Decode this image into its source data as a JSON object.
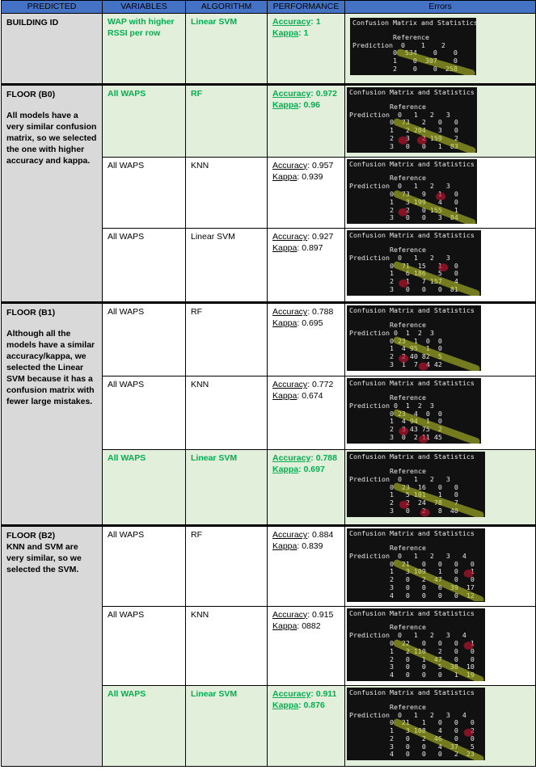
{
  "headers": {
    "predicted": "PREDICTED",
    "variables": "VARIABLES",
    "algorithm": "ALGORITHM",
    "performance": "PERFORMANCE",
    "errors": "Errors"
  },
  "cm_title": "Confusion Matrix and Statistics",
  "cm_reference": "Reference",
  "cm_prediction": "Prediction",
  "acc_label": "Accuracy",
  "kappa_label": "Kappa",
  "colors": {
    "header": "#4472c4",
    "selected_bg": "#e2efda",
    "selected_text": "#00b050",
    "predicted_bg": "#d9d9d9",
    "diagonal_highlight": "#c5d12a",
    "error_highlight": "#c0152f"
  },
  "groups": {
    "building": {
      "title": "BUILDING ID",
      "explanation": "",
      "rows": [
        {
          "variables": "WAP with higher RSSI per row",
          "algorithm": "Linear SVM",
          "accuracy": ": 1",
          "kappa": ": 1",
          "cm": {
            "cols": "  0    1    2",
            "lines": [
              "0  534    0    0",
              "1    0  307    0",
              "2    0    0  258"
            ]
          }
        }
      ]
    },
    "b0": {
      "title": "FLOOR (B0)",
      "explanation": "All models have a very similar confusion matrix, so we selected the one with higher accuracy and kappa.",
      "rows": [
        {
          "variables": "All WAPS",
          "algorithm": "RF",
          "accuracy": ": 0.972",
          "kappa": ": 0.96",
          "cm": {
            "cols": "  0   1   2   3",
            "lines": [
              "0  73   2   0   0",
              "1   2 204   3   0",
              "2   3   2 159   2",
              "3   0   0   1  83"
            ]
          }
        },
        {
          "variables": "All WAPS",
          "algorithm": "KNN",
          "accuracy": ": 0.957",
          "kappa": ": 0.939",
          "cm": {
            "cols": "  0   1   2   3",
            "lines": [
              "0  73   9   1   0",
              "1   3 199   4   0",
              "2   2   0 155   1",
              "3   0   0   3  84"
            ]
          }
        },
        {
          "variables": "All WAPS",
          "algorithm": "Linear SVM",
          "accuracy": ": 0.927",
          "kappa": ": 0.897",
          "cm": {
            "cols": "  0   1   2   3",
            "lines": [
              "0  71  15   1   0",
              "1   6 186   5   0",
              "2   1   7 157   4",
              "3   0   0   0  81"
            ]
          }
        }
      ]
    },
    "b1": {
      "title": "FLOOR (B1)",
      "explanation": "Although all the models have a similar accuracy/kappa, we selected the Linear SVM because it has a confusion matrix with fewer large mistakes.",
      "rows": [
        {
          "variables": "All WAPS",
          "algorithm": "RF",
          "accuracy": ": 0.788",
          "kappa": ": 0.695",
          "cm": {
            "cols": " 0  1  2  3",
            "lines": [
              "0 23  1  0  0",
              "1  4 95  1  0",
              "2  2 40 82  5",
              "3  1  7  4 42"
            ]
          }
        },
        {
          "variables": "All WAPS",
          "algorithm": "KNN",
          "accuracy": ": 0.772",
          "kappa": ": 0.674",
          "cm": {
            "cols": " 0  1  2  3",
            "lines": [
              "0 23  4  0  0",
              "1  4 94  1  0",
              "2  3 43 75  2",
              "3  0  2 11 45"
            ]
          }
        },
        {
          "variables": "All WAPS",
          "algorithm": "Linear SVM",
          "accuracy": ": 0.788",
          "kappa": ": 0.697",
          "cm": {
            "cols": "  0   1   2   3",
            "lines": [
              "0  23  16   0   0",
              "1   5 101   1   0",
              "2   2  24  78   7",
              "3   0   2   8  40"
            ]
          }
        }
      ]
    },
    "b2": {
      "title": "FLOOR (B2)",
      "explanation": "KNN and SVM are very similar, so we selected the SVM.",
      "rows": [
        {
          "variables": "All WAPS",
          "algorithm": "RF",
          "accuracy": ": 0.884",
          "kappa": ": 0.839",
          "cm": {
            "cols": "  0   1   2   3   4",
            "lines": [
              "0  21   0   0   0   0",
              "1   3 109   1   0   1",
              "2   0   2  47   0   0",
              "3   0   0   6  39  17",
              "4   0   0   0   0  12"
            ]
          }
        },
        {
          "variables": "All WAPS",
          "algorithm": "KNN",
          "accuracy": ": 0.915",
          "kappa": ": 0882",
          "cm": {
            "cols": "  0   1   2   3   4",
            "lines": [
              "0  22   0   0   0   1",
              "1   2 110   2   0   0",
              "2   0   1  47   0   0",
              "3   0   0   5  38  10",
              "4   0   0   0   1  19"
            ]
          }
        },
        {
          "variables": "All WAPS",
          "algorithm": "Linear SVM",
          "accuracy": ": 0.911",
          "kappa": ": 0.876",
          "cm": {
            "cols": "  0   1   2   3   4",
            "lines": [
              "0  21   1   0   0   0",
              "1   3 108   4   0   2",
              "2   0   2  46   0   0",
              "3   0   0   4  37   5",
              "4   0   0   0   2  23"
            ]
          }
        }
      ]
    }
  }
}
